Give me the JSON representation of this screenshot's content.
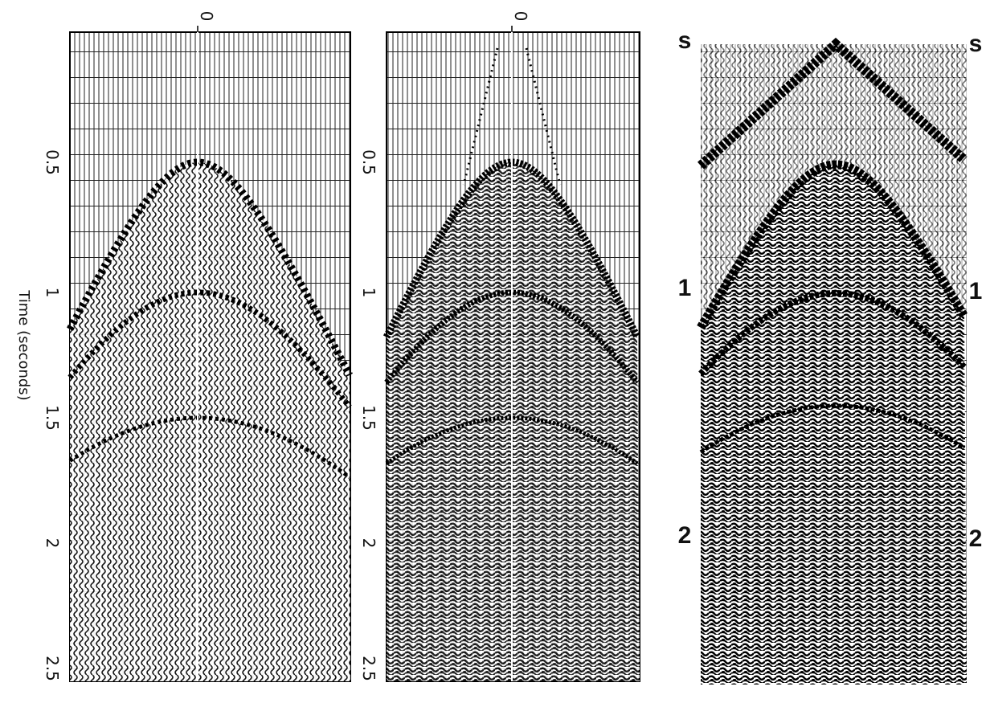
{
  "panels": [
    {
      "top_label": "0",
      "time_labels": [
        "0.5",
        "1",
        "1.5",
        "2",
        "2.5"
      ],
      "axis_label": "Time (seconds)"
    },
    {
      "top_label": "0",
      "time_labels": [
        "0.5",
        "1",
        "1.5",
        "2",
        "2.5"
      ]
    },
    {
      "left_labels": [
        "s",
        "1",
        "2"
      ],
      "right_labels": [
        "s",
        "1",
        "2"
      ]
    }
  ]
}
